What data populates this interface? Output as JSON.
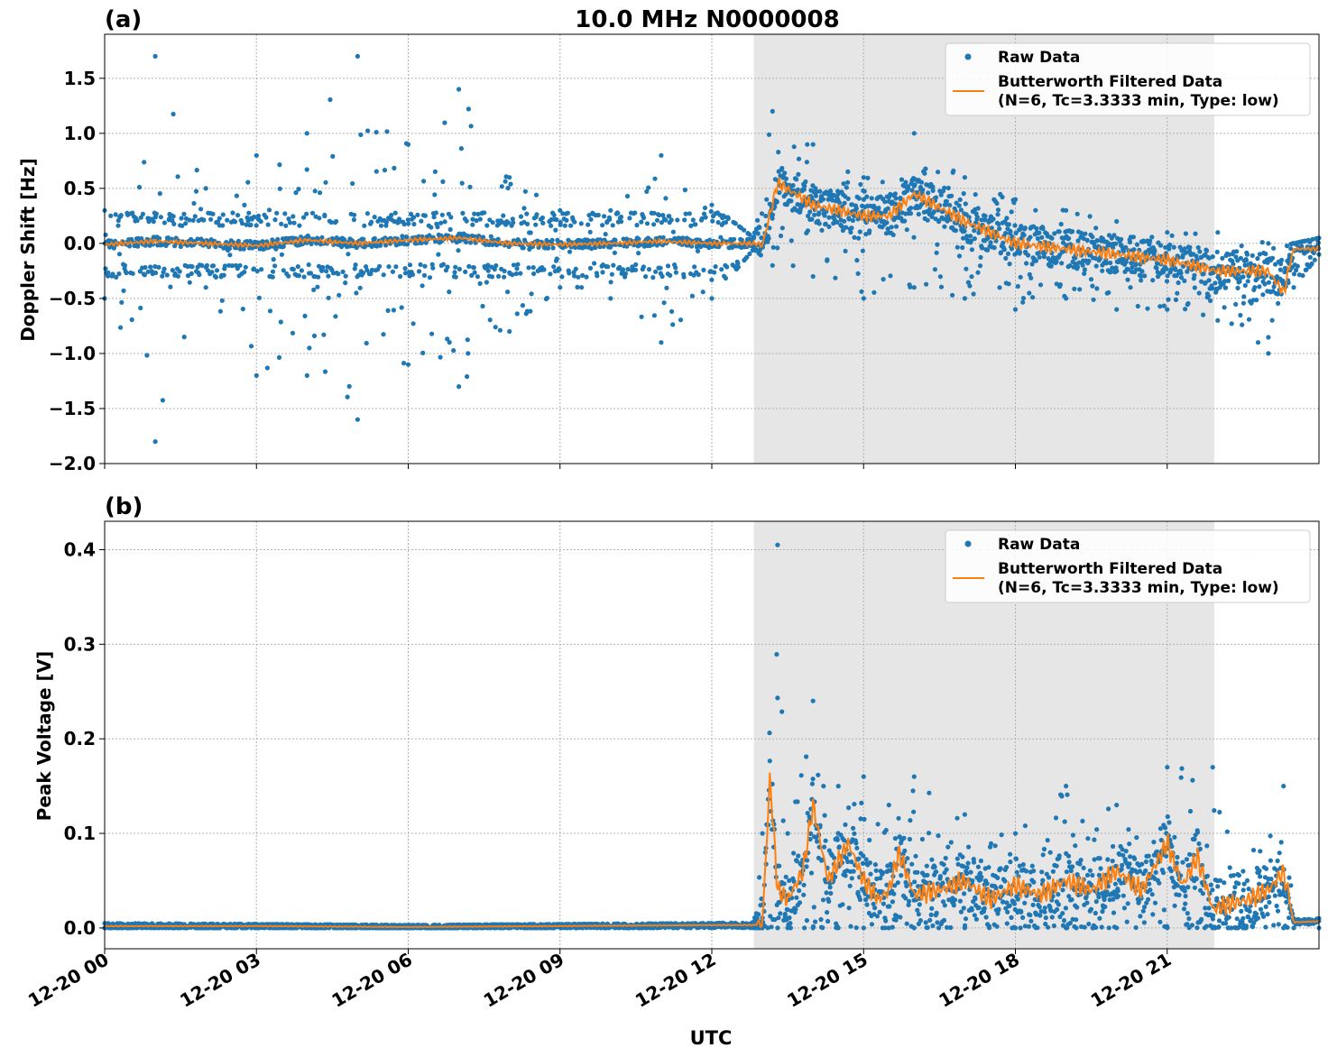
{
  "figure_title": "10.0 MHz N0000008",
  "x_axis_label": "UTC",
  "x_ticks": [
    "12-20 00",
    "12-20 03",
    "12-20 06",
    "12-20 09",
    "12-20 12",
    "12-20 15",
    "12-20 18",
    "12-20 21"
  ],
  "chart_data": [
    {
      "type": "scatter",
      "panel": "(a)",
      "title": "10.0 MHz N0000008",
      "xlabel": "UTC",
      "ylabel": "Doppler Shift [Hz]",
      "xlim_hours": [
        0,
        24
      ],
      "ylim": [
        -2.0,
        1.9
      ],
      "yticks": [
        "−2.0",
        "−1.5",
        "−1.0",
        "−0.5",
        "0.0",
        "0.5",
        "1.0",
        "1.5"
      ],
      "shaded_region_hours": [
        12.83,
        21.93
      ],
      "grid": true,
      "legend_position": "top-right",
      "series": [
        {
          "name": "Raw Data",
          "kind": "scatter",
          "color": "#1f77b4",
          "envelope_x": [
            0,
            1,
            2,
            3,
            4,
            5,
            6,
            7,
            8,
            9,
            10,
            11,
            12,
            12.83,
            13.2,
            14,
            15,
            16,
            17,
            18,
            19,
            20,
            21,
            22,
            23,
            23.5,
            24
          ],
          "envelope_upper": [
            0.3,
            1.7,
            0.5,
            0.8,
            1.0,
            1.7,
            0.9,
            1.4,
            0.6,
            0.3,
            0.3,
            0.8,
            0.35,
            0.05,
            1.2,
            0.9,
            0.6,
            1.0,
            0.6,
            0.4,
            0.3,
            0.2,
            0.1,
            0.1,
            0.0,
            0.0,
            0.05
          ],
          "envelope_lower": [
            -0.5,
            -1.8,
            -0.4,
            -1.2,
            -1.2,
            -1.6,
            -1.1,
            -1.3,
            -0.8,
            -0.4,
            -0.5,
            -0.9,
            -0.5,
            -0.05,
            -0.2,
            -0.3,
            -0.5,
            -0.4,
            -0.5,
            -0.6,
            -0.5,
            -0.6,
            -0.6,
            -0.7,
            -1.0,
            -0.4,
            -0.1
          ]
        },
        {
          "name": "Butterworth Filtered Data",
          "legend_note": "(N=6, Tc=3.3333 min, Type: low)",
          "kind": "line",
          "color": "#ff7f0e",
          "x": [
            0,
            1,
            2,
            3,
            4,
            5,
            6,
            7,
            8,
            9,
            10,
            11,
            12,
            12.83,
            13.0,
            13.3,
            14,
            14.5,
            15,
            15.5,
            16,
            17,
            18,
            19,
            20,
            21,
            22,
            23,
            23.3,
            23.5,
            24
          ],
          "y": [
            -0.01,
            0.02,
            0.0,
            -0.02,
            0.03,
            0.0,
            0.03,
            0.05,
            0.0,
            -0.01,
            0.0,
            0.02,
            0.0,
            0.0,
            -0.02,
            0.55,
            0.35,
            0.3,
            0.25,
            0.25,
            0.45,
            0.2,
            0.0,
            -0.05,
            -0.1,
            -0.15,
            -0.25,
            -0.25,
            -0.45,
            -0.05,
            -0.05
          ]
        }
      ]
    },
    {
      "type": "scatter",
      "panel": "(b)",
      "xlabel": "UTC",
      "ylabel": "Peak Voltage [V]",
      "xlim_hours": [
        0,
        24
      ],
      "ylim": [
        -0.022,
        0.43
      ],
      "yticks": [
        "0.0",
        "0.1",
        "0.2",
        "0.3",
        "0.4"
      ],
      "shaded_region_hours": [
        12.83,
        21.93
      ],
      "grid": true,
      "legend_position": "top-right",
      "series": [
        {
          "name": "Raw Data",
          "kind": "scatter",
          "color": "#1f77b4",
          "envelope_x": [
            0,
            6,
            12,
            12.83,
            13.0,
            13.3,
            13.5,
            14,
            14.5,
            15,
            15.5,
            16,
            17,
            18,
            19,
            20,
            21,
            21.9,
            22.5,
            23.3,
            23.5,
            24
          ],
          "envelope_upper": [
            0.005,
            0.003,
            0.005,
            0.006,
            0.1,
            0.405,
            0.1,
            0.24,
            0.15,
            0.16,
            0.13,
            0.16,
            0.12,
            0.1,
            0.15,
            0.13,
            0.17,
            0.17,
            0.06,
            0.15,
            0.01,
            0.01
          ],
          "envelope_lower": [
            0.0,
            0.0,
            0.0,
            0.0,
            0.0,
            0.0,
            0.0,
            0.0,
            0.0,
            0.0,
            0.0,
            0.0,
            0.0,
            0.0,
            0.0,
            0.0,
            0.0,
            0.0,
            0.0,
            0.0,
            0.0,
            0.0
          ]
        },
        {
          "name": "Butterworth Filtered Data",
          "legend_note": "(N=6, Tc=3.3333 min, Type: low)",
          "kind": "line",
          "color": "#ff7f0e",
          "x": [
            0,
            3,
            6,
            9,
            12,
            12.83,
            13.0,
            13.15,
            13.3,
            13.5,
            13.8,
            14.0,
            14.3,
            14.7,
            15.0,
            15.3,
            15.5,
            15.7,
            16,
            16.5,
            17,
            17.5,
            18,
            18.5,
            19,
            19.5,
            20,
            20.5,
            21,
            21.3,
            21.6,
            21.9,
            22.2,
            22.6,
            23.0,
            23.3,
            23.5,
            24
          ],
          "y": [
            0.002,
            0.002,
            0.001,
            0.002,
            0.003,
            0.003,
            0.004,
            0.16,
            0.04,
            0.03,
            0.06,
            0.13,
            0.05,
            0.09,
            0.05,
            0.03,
            0.04,
            0.08,
            0.035,
            0.04,
            0.05,
            0.03,
            0.045,
            0.035,
            0.05,
            0.04,
            0.06,
            0.04,
            0.09,
            0.045,
            0.075,
            0.02,
            0.025,
            0.03,
            0.04,
            0.06,
            0.006,
            0.007
          ]
        }
      ]
    }
  ]
}
